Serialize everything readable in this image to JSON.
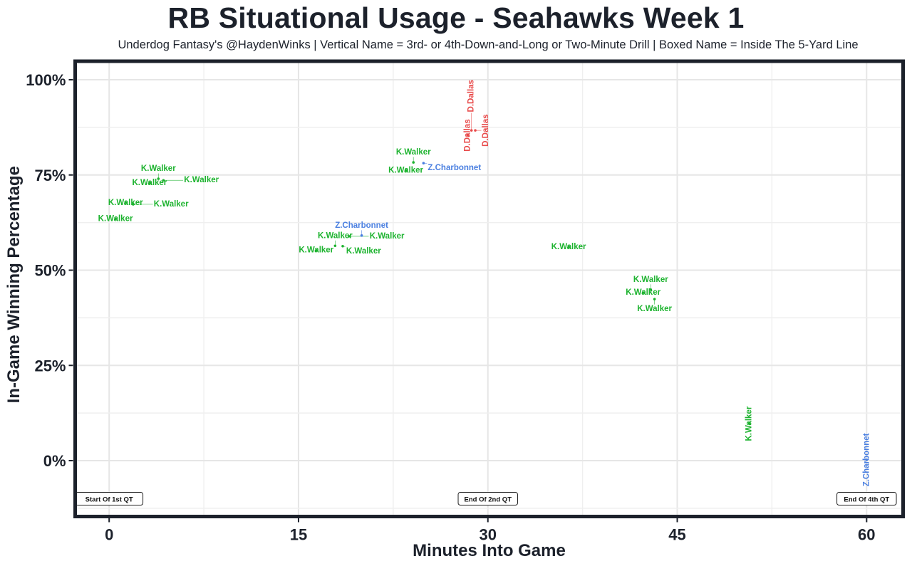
{
  "chart_data": {
    "type": "scatter",
    "title": "RB Situational Usage - Seahawks Week 1",
    "subtitle": "Underdog Fantasy's @HaydenWinks | Vertical Name = 3rd- or 4th-Down-and-Long or Two-Minute Drill | Boxed Name = Inside The 5-Yard Line",
    "xlabel": "Minutes Into Game",
    "ylabel": "In-Game Winning Percentage",
    "xlim": [
      -2.8,
      62.5
    ],
    "ylim": [
      -15.5,
      104
    ],
    "x_ticks": [
      0,
      15,
      30,
      45,
      60
    ],
    "x_tick_labels": [
      "0",
      "15",
      "30",
      "45",
      "60"
    ],
    "y_ticks": [
      0,
      25,
      50,
      75,
      100
    ],
    "y_tick_labels": [
      "0%",
      "25%",
      "50%",
      "75%",
      "100%"
    ],
    "grid": true,
    "colors": {
      "K.Walker": "#1db32f",
      "Z.Charbonnet": "#4a7fe0",
      "D.Dallas": "#e84a4a"
    },
    "points": [
      {
        "player": "K.Walker",
        "x": 0.5,
        "y": 63.5,
        "vertical": false
      },
      {
        "player": "K.Walker",
        "x": 1.3,
        "y": 67.7,
        "vertical": false
      },
      {
        "player": "K.Walker",
        "x": 1.9,
        "y": 67.3,
        "vertical": false
      },
      {
        "player": "K.Walker",
        "x": 3.2,
        "y": 72.9,
        "vertical": false
      },
      {
        "player": "K.Walker",
        "x": 3.9,
        "y": 74.0,
        "vertical": false
      },
      {
        "player": "K.Walker",
        "x": 4.3,
        "y": 73.6,
        "vertical": false
      },
      {
        "player": "K.Walker",
        "x": 16.4,
        "y": 55.2,
        "vertical": false
      },
      {
        "player": "K.Walker",
        "x": 17.9,
        "y": 56.4,
        "vertical": false
      },
      {
        "player": "K.Walker",
        "x": 18.5,
        "y": 56.3,
        "vertical": false
      },
      {
        "player": "K.Walker",
        "x": 19.0,
        "y": 58.9,
        "vertical": false
      },
      {
        "player": "Z.Charbonnet",
        "x": 20.0,
        "y": 59.1,
        "vertical": false
      },
      {
        "player": "K.Walker",
        "x": 23.5,
        "y": 76.2,
        "vertical": false
      },
      {
        "player": "K.Walker",
        "x": 24.1,
        "y": 78.3,
        "vertical": false
      },
      {
        "player": "Z.Charbonnet",
        "x": 24.9,
        "y": 78.1,
        "vertical": false
      },
      {
        "player": "D.Dallas",
        "x": 28.4,
        "y": 85.4,
        "vertical": true
      },
      {
        "player": "D.Dallas",
        "x": 28.7,
        "y": 86.7,
        "vertical": true
      },
      {
        "player": "D.Dallas",
        "x": 29.0,
        "y": 86.7,
        "vertical": true
      },
      {
        "player": "K.Walker",
        "x": 36.4,
        "y": 56.1,
        "vertical": false
      },
      {
        "player": "K.Walker",
        "x": 42.3,
        "y": 44.1,
        "vertical": false
      },
      {
        "player": "K.Walker",
        "x": 42.9,
        "y": 44.9,
        "vertical": false
      },
      {
        "player": "K.Walker",
        "x": 43.2,
        "y": 42.4,
        "vertical": false
      },
      {
        "player": "K.Walker",
        "x": 50.7,
        "y": 9.7,
        "vertical": true
      },
      {
        "player": "Z.Charbonnet",
        "x": 60.0,
        "y": 0.2,
        "vertical": true
      }
    ],
    "annotations": [
      {
        "text": "Start Of 1st QT",
        "x": 0,
        "y": -10
      },
      {
        "text": "End Of 2nd QT",
        "x": 30,
        "y": -10
      },
      {
        "text": "End Of 4th QT",
        "x": 60,
        "y": -10
      }
    ]
  }
}
